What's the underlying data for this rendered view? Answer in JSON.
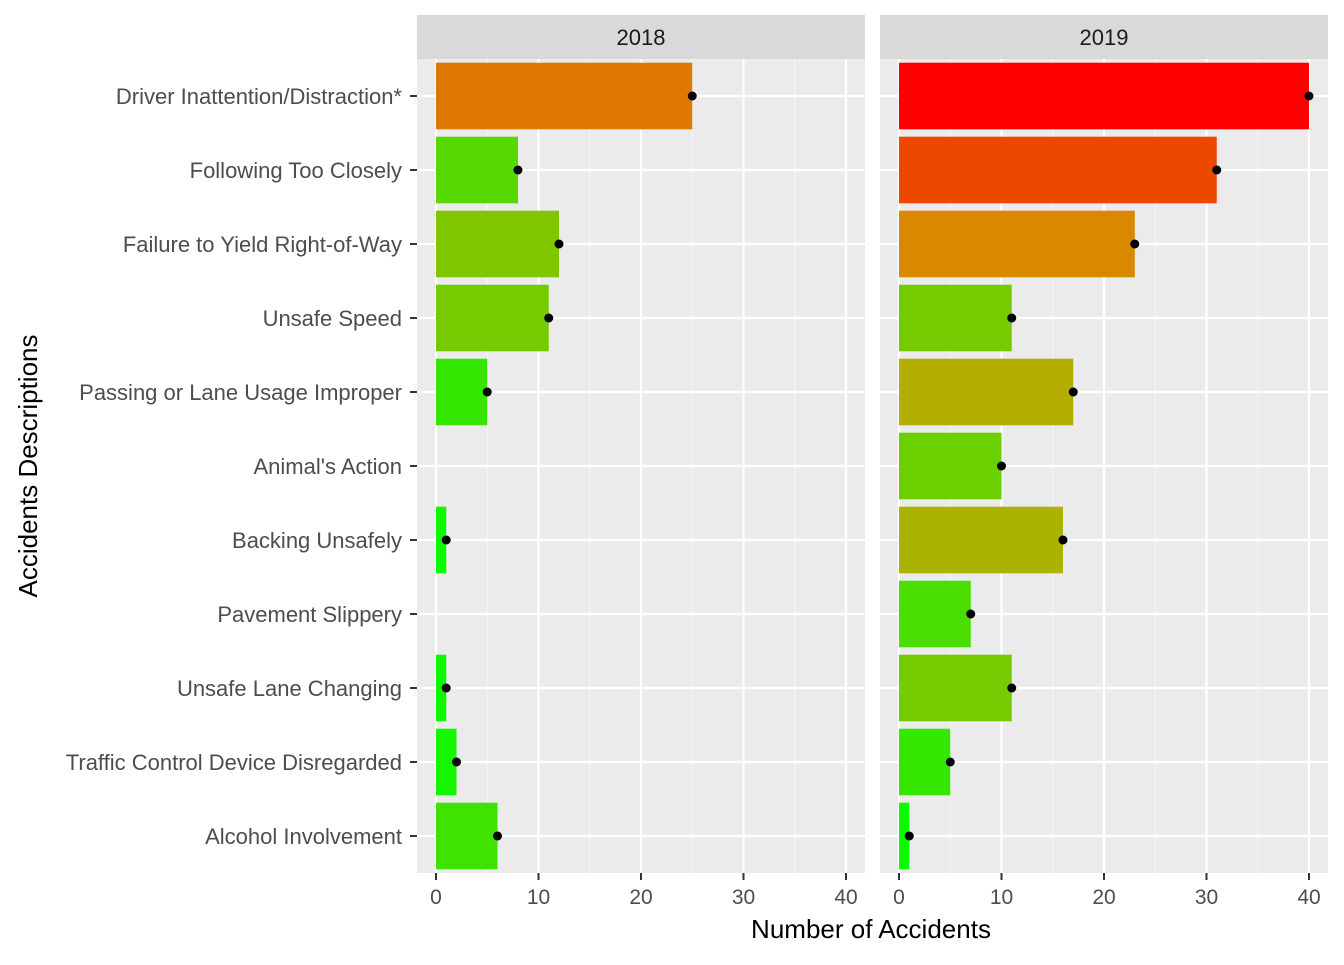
{
  "chart_data": {
    "type": "bar",
    "orientation": "horizontal",
    "xlabel": "Number of Accidents",
    "ylabel": "Accidents Descriptions",
    "xlim": [
      0,
      42
    ],
    "x_ticks": [
      0,
      10,
      20,
      30,
      40
    ],
    "grid": true,
    "legend": "none",
    "categories": [
      "Driver Inattention/Distraction*",
      "Following Too Closely",
      "Failure to Yield Right-of-Way",
      "Unsafe Speed",
      "Passing or Lane Usage Improper",
      "Animal's Action",
      "Backing Unsafely",
      "Pavement Slippery",
      "Unsafe Lane Changing",
      "Traffic Control Device Disregarded",
      "Alcohol Involvement"
    ],
    "color_scale": {
      "low": "#00ff00",
      "mid": "#d4a000",
      "high": "#ff0000",
      "max_value": 40
    },
    "facets": [
      {
        "name": "2018",
        "values": [
          25,
          8,
          12,
          11,
          5,
          null,
          1,
          null,
          1,
          2,
          6
        ]
      },
      {
        "name": "2019",
        "values": [
          40,
          31,
          23,
          11,
          17,
          10,
          16,
          7,
          11,
          5,
          1
        ]
      }
    ]
  }
}
